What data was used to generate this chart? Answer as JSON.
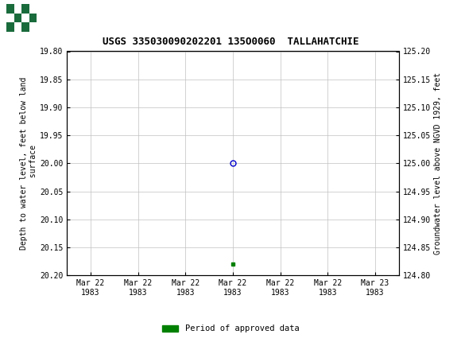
{
  "title": "USGS 335030090202201 135O0060  TALLAHATCHIE",
  "xlabel_dates": [
    "Mar 22\n1983",
    "Mar 22\n1983",
    "Mar 22\n1983",
    "Mar 22\n1983",
    "Mar 22\n1983",
    "Mar 22\n1983",
    "Mar 23\n1983"
  ],
  "ylabel_left": "Depth to water level, feet below land\n surface",
  "ylabel_right": "Groundwater level above NGVD 1929, feet",
  "ylim_left": [
    20.2,
    19.8
  ],
  "ylim_right": [
    124.8,
    125.2
  ],
  "yticks_left": [
    19.8,
    19.85,
    19.9,
    19.95,
    20.0,
    20.05,
    20.1,
    20.15,
    20.2
  ],
  "yticks_right": [
    125.2,
    125.15,
    125.1,
    125.05,
    125.0,
    124.95,
    124.9,
    124.85,
    124.8
  ],
  "data_point_x": 3.0,
  "data_point_y": 20.0,
  "green_bar_x": 3.0,
  "green_bar_y": 20.18,
  "header_color": "#1a6b3c",
  "header_text_color": "#ffffff",
  "plot_bg_color": "#ffffff",
  "grid_color": "#c0c0c0",
  "point_color": "#0000cc",
  "green_color": "#008000",
  "legend_label": "Period of approved data",
  "x_tick_positions": [
    0,
    1,
    2,
    3,
    4,
    5,
    6
  ],
  "font_family": "monospace",
  "title_fontsize": 9,
  "tick_fontsize": 7,
  "label_fontsize": 7
}
